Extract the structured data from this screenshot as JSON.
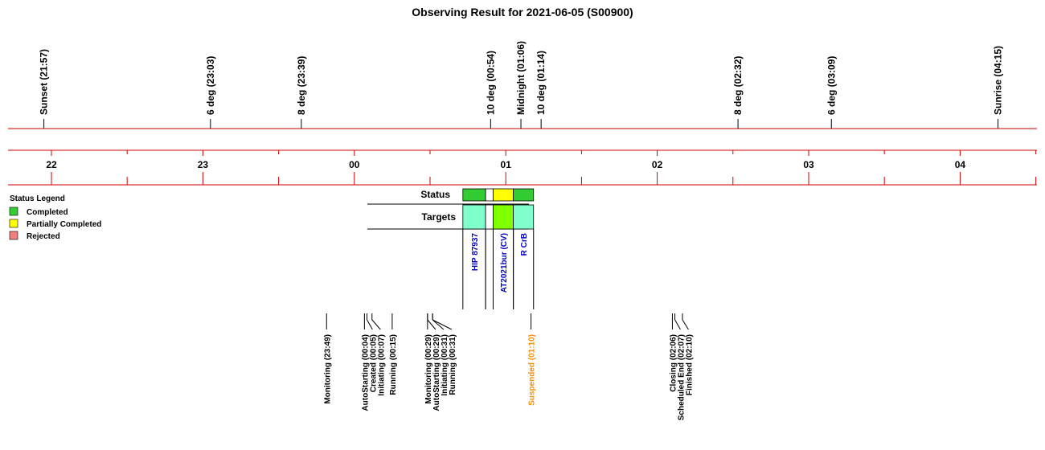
{
  "chart_data": {
    "type": "timeline",
    "title": "Observing Result for 2021-06-05 (S00900)",
    "time_ticks": [
      "22",
      "23",
      "00",
      "01",
      "02",
      "03",
      "04"
    ],
    "sun_events": [
      {
        "label": "Sunset (21:57)",
        "time": "21:57"
      },
      {
        "label": "6 deg (23:03)",
        "time": "23:03"
      },
      {
        "label": "8 deg (23:39)",
        "time": "23:39"
      },
      {
        "label": "10 deg (00:54)",
        "time": "00:54"
      },
      {
        "label": "Midnight (01:06)",
        "time": "01:06"
      },
      {
        "label": "10 deg (01:14)",
        "time": "01:14"
      },
      {
        "label": "8 deg (02:32)",
        "time": "02:32"
      },
      {
        "label": "6 deg (03:09)",
        "time": "03:09"
      },
      {
        "label": "Sunrise (04:15)",
        "time": "04:15"
      }
    ],
    "legend": {
      "title": "Status Legend",
      "placement": "left",
      "items": [
        {
          "label": "Completed",
          "color": "#33cc33"
        },
        {
          "label": "Partially Completed",
          "color": "#ffff00"
        },
        {
          "label": "Rejected",
          "color": "#f08080"
        }
      ]
    },
    "status_row_label": "Status",
    "targets_row_label": "Targets",
    "status_blocks": [
      {
        "start": "00:43",
        "end": "00:52",
        "status": "Completed",
        "color": "#33cc33"
      },
      {
        "start": "00:52",
        "end": "00:55",
        "status": "",
        "color": "#ffffff"
      },
      {
        "start": "00:55",
        "end": "01:03",
        "status": "Partially Completed",
        "color": "#ffff00"
      },
      {
        "start": "01:03",
        "end": "01:11",
        "status": "Completed",
        "color": "#33cc33"
      }
    ],
    "targets": [
      {
        "name": "HIP 87937",
        "start": "00:43",
        "end": "00:52",
        "color": "#80ffcc"
      },
      {
        "name": "",
        "start": "00:52",
        "end": "00:55",
        "color": "#ffffff"
      },
      {
        "name": "AT2021bur (CV)",
        "start": "00:55",
        "end": "01:03",
        "color": "#80ff00"
      },
      {
        "name": "R CrB",
        "start": "01:03",
        "end": "01:11",
        "color": "#80ffcc"
      }
    ],
    "events": [
      {
        "label": "Monitoring (23:49)",
        "time": "23:49",
        "color": "#000000"
      },
      {
        "label": "AutoStarting (00:04)",
        "time": "00:04",
        "color": "#000000"
      },
      {
        "label": "Created (00:05)",
        "time": "00:05",
        "color": "#000000"
      },
      {
        "label": "Initiating (00:07)",
        "time": "00:07",
        "color": "#000000"
      },
      {
        "label": "Running (00:15)",
        "time": "00:15",
        "color": "#000000"
      },
      {
        "label": "Monitoring (00:29)",
        "time": "00:29",
        "color": "#000000"
      },
      {
        "label": "AutoStarting (00:29)",
        "time": "00:29",
        "color": "#000000"
      },
      {
        "label": "Initiating (00:31)",
        "time": "00:31",
        "color": "#000000"
      },
      {
        "label": "Running (00:31)",
        "time": "00:31",
        "color": "#000000"
      },
      {
        "label": "Suspended (01:10)",
        "time": "01:10",
        "color": "#ff8c00"
      },
      {
        "label": "Closing (02:06)",
        "time": "02:06",
        "color": "#000000"
      },
      {
        "label": "Scheduled End (02:07)",
        "time": "02:07",
        "color": "#000000"
      },
      {
        "label": "Finished (02:10)",
        "time": "02:10",
        "color": "#000000"
      }
    ],
    "colors": {
      "axis": "#cc0000",
      "target_text": "#0000cc"
    }
  }
}
